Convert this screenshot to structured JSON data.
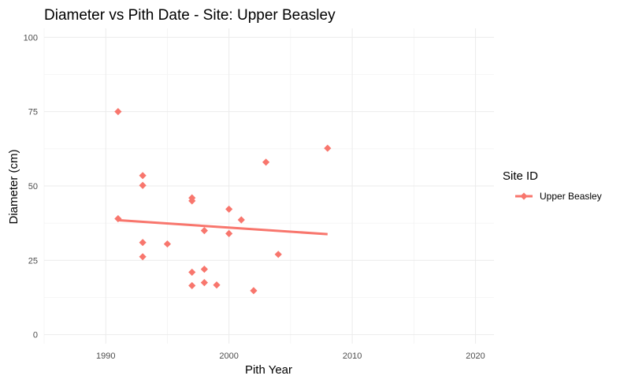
{
  "chart_data": {
    "type": "scatter",
    "title": "Diameter vs Pith Date - Site: Upper Beasley",
    "xlabel": "Pith Year",
    "ylabel": "Diameter (cm)",
    "xlim": [
      1985,
      2021.5
    ],
    "ylim": [
      -3,
      103
    ],
    "x_ticks": [
      1990,
      2000,
      2010,
      2020
    ],
    "y_ticks": [
      0,
      25,
      50,
      75,
      100
    ],
    "x_minor": [
      1985,
      1995,
      2005,
      2015
    ],
    "y_minor": [
      12.5,
      37.5,
      62.5,
      87.5
    ],
    "grid": true,
    "legend_title": "Site ID",
    "legend_position": "right",
    "series": [
      {
        "name": "Upper Beasley",
        "color": "#F8766D",
        "marker": "diamond",
        "points": [
          {
            "x": 1991,
            "y": 75
          },
          {
            "x": 1991,
            "y": 39
          },
          {
            "x": 1993,
            "y": 53.5
          },
          {
            "x": 1993,
            "y": 50.2
          },
          {
            "x": 1993,
            "y": 31
          },
          {
            "x": 1993,
            "y": 26.2
          },
          {
            "x": 1995,
            "y": 30.5
          },
          {
            "x": 1997,
            "y": 46
          },
          {
            "x": 1997,
            "y": 45
          },
          {
            "x": 1997,
            "y": 21
          },
          {
            "x": 1997,
            "y": 16.5
          },
          {
            "x": 1998,
            "y": 35
          },
          {
            "x": 1998,
            "y": 22
          },
          {
            "x": 1998,
            "y": 17.5
          },
          {
            "x": 1999,
            "y": 16.7
          },
          {
            "x": 2000,
            "y": 42.2
          },
          {
            "x": 2000,
            "y": 34
          },
          {
            "x": 2001,
            "y": 38.6
          },
          {
            "x": 2002,
            "y": 14.8
          },
          {
            "x": 2003,
            "y": 58
          },
          {
            "x": 2004,
            "y": 27
          },
          {
            "x": 2008,
            "y": 62.7
          }
        ],
        "trend": {
          "x": [
            1991,
            2008
          ],
          "y": [
            38.5,
            33.8
          ]
        }
      }
    ]
  }
}
